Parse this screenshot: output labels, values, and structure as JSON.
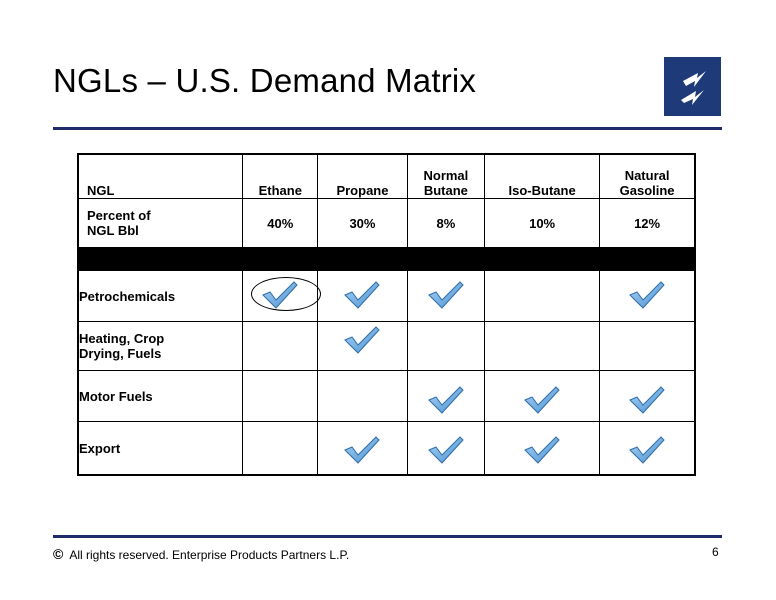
{
  "title": "NGLs – U.S. Demand Matrix",
  "logo_icon": "lightning-logo-icon",
  "brand_color": "#1f3a78",
  "table": {
    "header": [
      "NGL",
      "Ethane",
      "Propane",
      "Normal Butane",
      "Iso-Butane",
      "Natural Gasoline"
    ],
    "header_lines": [
      [
        "NGL"
      ],
      [
        "Ethane"
      ],
      [
        "Propane"
      ],
      [
        "Normal",
        "Butane"
      ],
      [
        "Iso-Butane"
      ],
      [
        "Natural",
        "Gasoline"
      ]
    ],
    "percent_row": {
      "label_lines": [
        "Percent of",
        "NGL Bbl"
      ],
      "values": [
        "40%",
        "30%",
        "8%",
        "10%",
        "12%"
      ]
    },
    "rows": [
      {
        "label_lines": [
          "Petrochemicals"
        ],
        "checks": [
          true,
          true,
          true,
          false,
          true
        ]
      },
      {
        "label_lines": [
          "Heating, Crop",
          "Drying, Fuels"
        ],
        "checks": [
          false,
          true,
          false,
          false,
          false
        ]
      },
      {
        "label_lines": [
          "Motor Fuels"
        ],
        "checks": [
          false,
          false,
          true,
          true,
          true
        ]
      },
      {
        "label_lines": [
          "Export"
        ],
        "checks": [
          false,
          true,
          true,
          true,
          true
        ]
      }
    ],
    "highlighted_cell": "Petrochemicals / Ethane",
    "check_icon": "checkmark-icon",
    "check_color": "#4a8fd0"
  },
  "footer": {
    "copyright_symbol": "©",
    "text": "All rights reserved. Enterprise Products Partners L.P.",
    "page_number": "6"
  }
}
